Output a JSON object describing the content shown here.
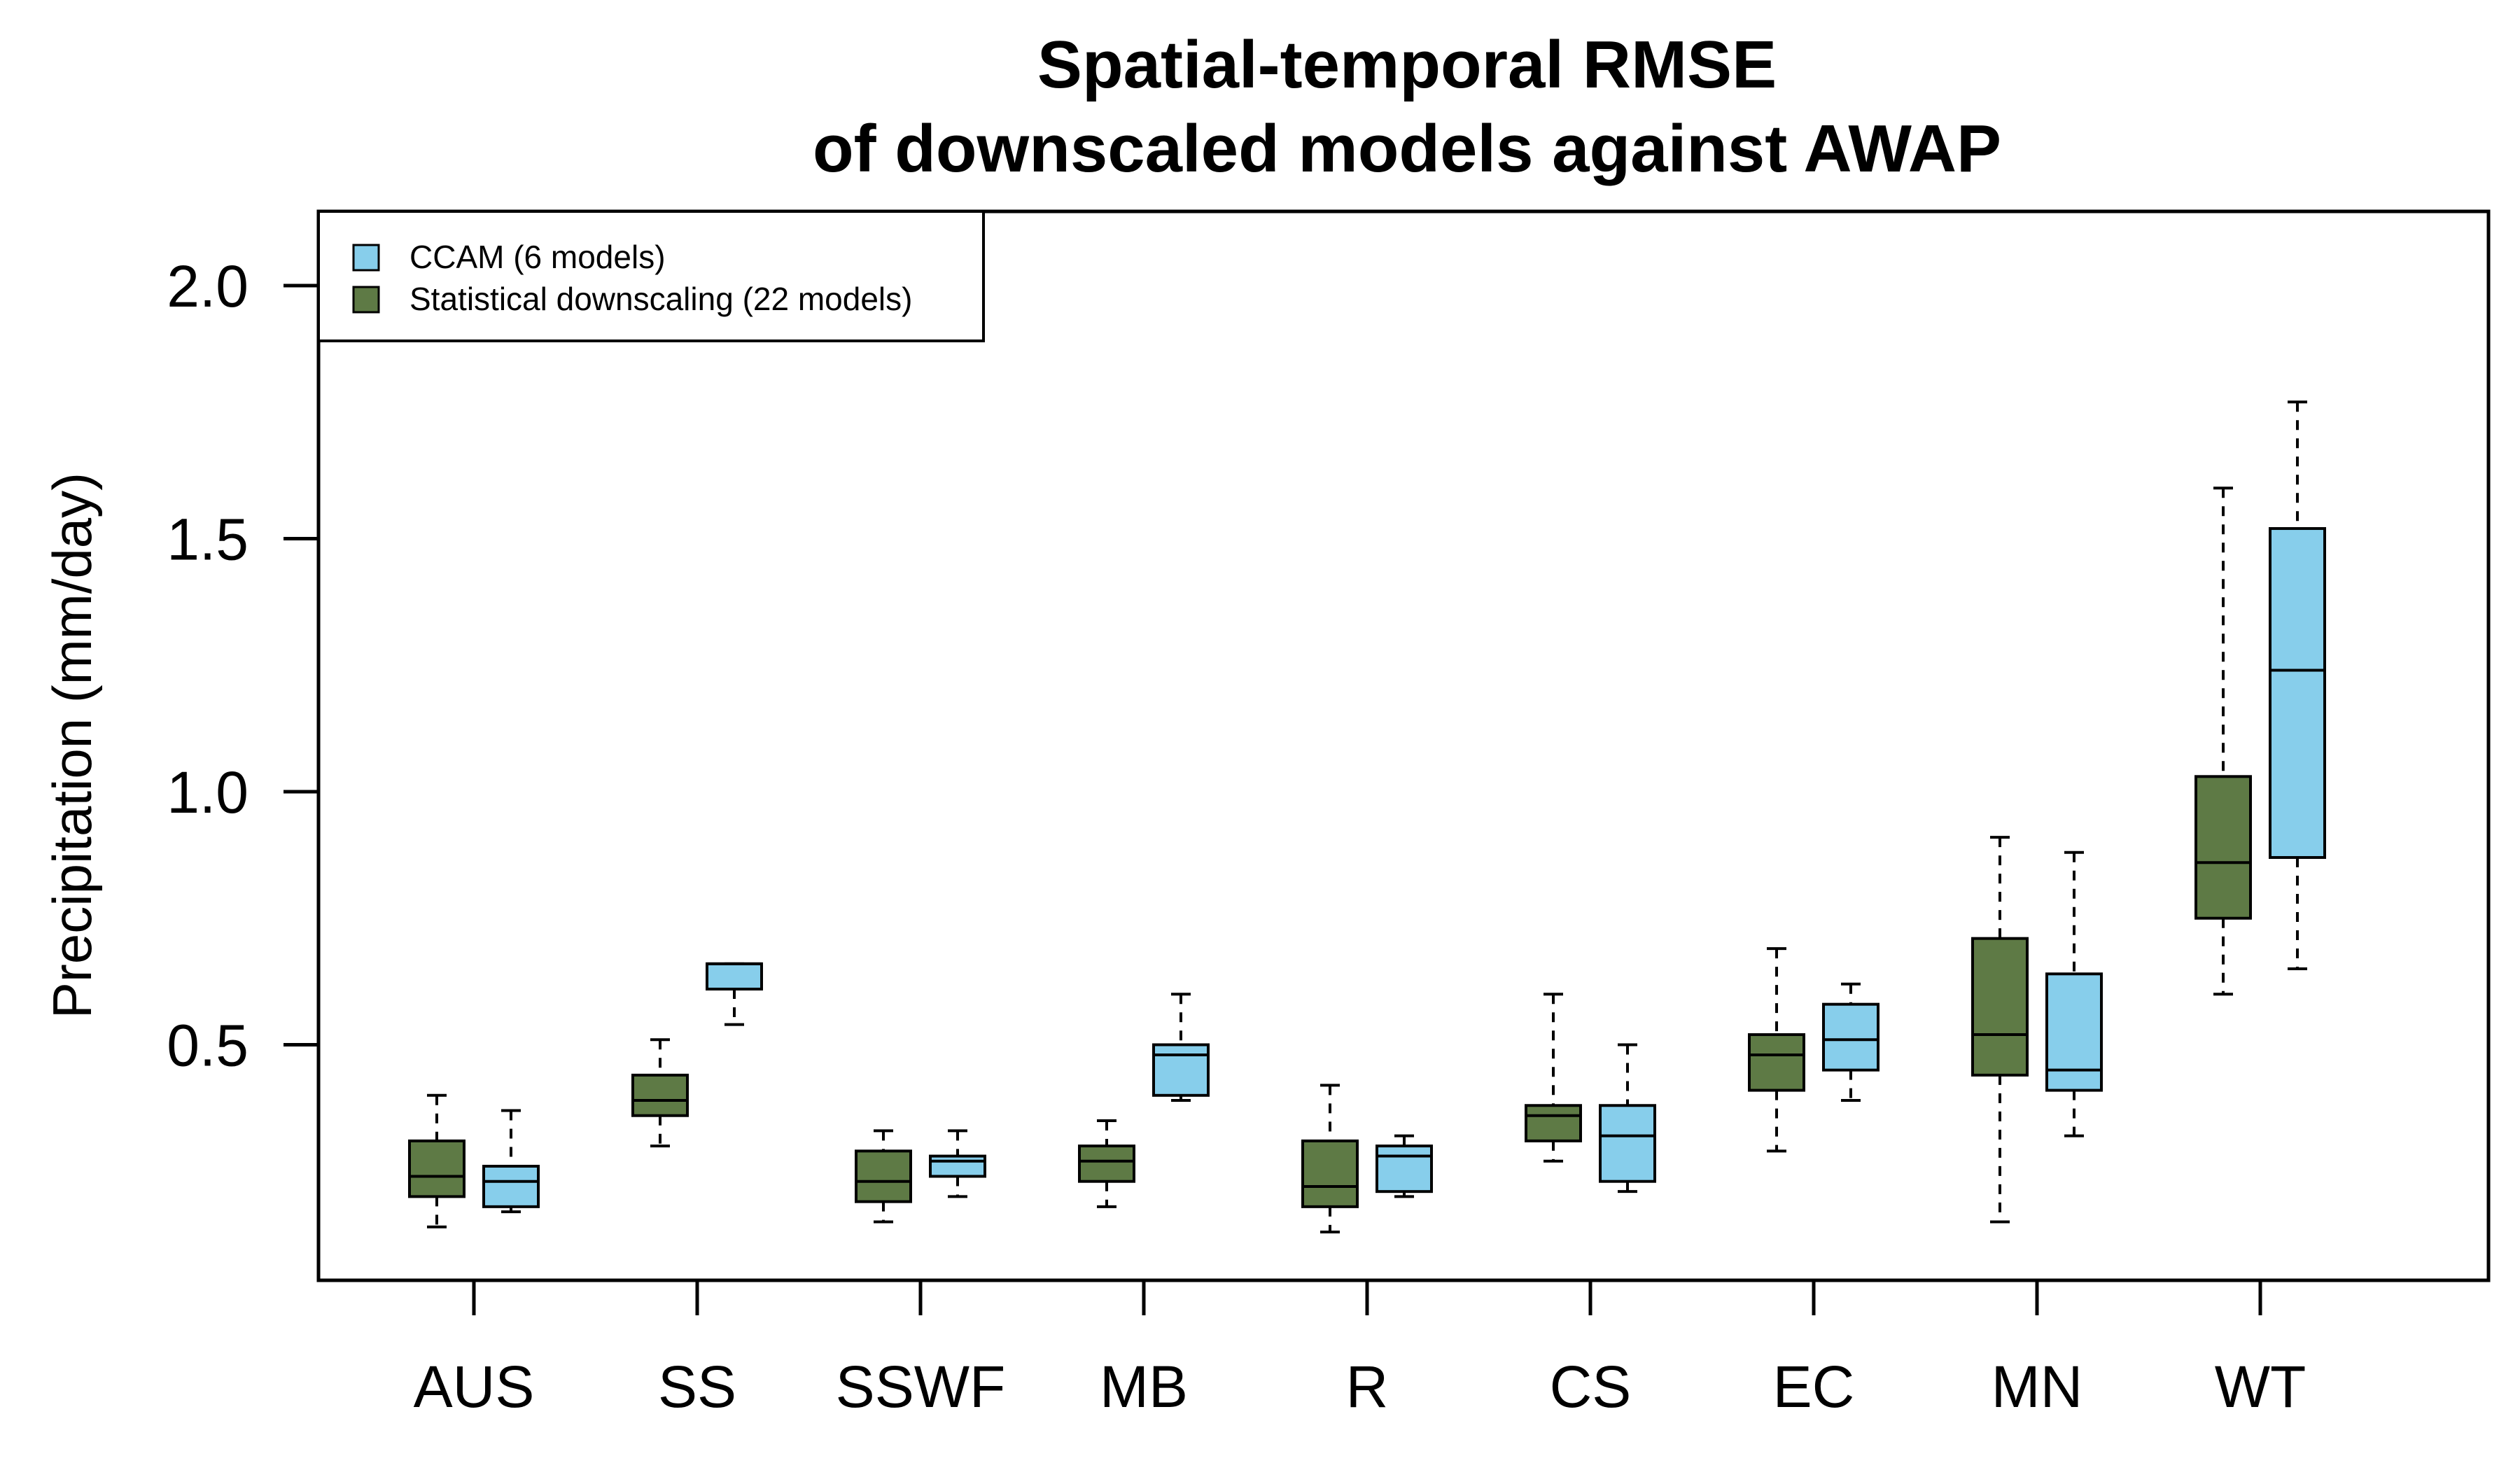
{
  "chart_data": {
    "type": "boxplot",
    "title": [
      "Spatial-temporal RMSE",
      "of downscaled models against AWAP"
    ],
    "xlabel": "",
    "ylabel": "Precipitation (mm/day)",
    "ylim": [
      0.0,
      2.15
    ],
    "yticks": [
      0.5,
      1.0,
      1.5,
      2.0
    ],
    "ytick_labels": [
      "0.5",
      "1.0",
      "1.5",
      "2.0"
    ],
    "grid": false,
    "legend_position": "top-left",
    "categories": [
      "AUS",
      "SS",
      "SSWF",
      "MB",
      "R",
      "CS",
      "EC",
      "MN",
      "WT"
    ],
    "series": [
      {
        "name": "Statistical downscaling (22 models)",
        "color": "#5e7a45",
        "boxes": [
          {
            "min": 0.14,
            "q1": 0.2,
            "median": 0.24,
            "q3": 0.31,
            "max": 0.4
          },
          {
            "min": 0.3,
            "q1": 0.36,
            "median": 0.39,
            "q3": 0.44,
            "max": 0.51
          },
          {
            "min": 0.15,
            "q1": 0.19,
            "median": 0.23,
            "q3": 0.29,
            "max": 0.33
          },
          {
            "min": 0.18,
            "q1": 0.23,
            "median": 0.27,
            "q3": 0.3,
            "max": 0.35
          },
          {
            "min": 0.13,
            "q1": 0.18,
            "median": 0.22,
            "q3": 0.31,
            "max": 0.42
          },
          {
            "min": 0.27,
            "q1": 0.31,
            "median": 0.36,
            "q3": 0.38,
            "max": 0.6
          },
          {
            "min": 0.29,
            "q1": 0.41,
            "median": 0.48,
            "q3": 0.52,
            "max": 0.69
          },
          {
            "min": 0.15,
            "q1": 0.44,
            "median": 0.52,
            "q3": 0.71,
            "max": 0.91
          },
          {
            "min": 0.6,
            "q1": 0.75,
            "median": 0.86,
            "q3": 1.03,
            "max": 1.6
          }
        ]
      },
      {
        "name": "CCAM (6 models)",
        "color": "#87ceeb",
        "boxes": [
          {
            "min": 0.17,
            "q1": 0.18,
            "median": 0.23,
            "q3": 0.26,
            "max": 0.37
          },
          {
            "min": 0.54,
            "q1": 0.61,
            "median": 0.66,
            "q3": 0.66,
            "max": 0.66
          },
          {
            "min": 0.2,
            "q1": 0.24,
            "median": 0.27,
            "q3": 0.28,
            "max": 0.33
          },
          {
            "min": 0.39,
            "q1": 0.4,
            "median": 0.48,
            "q3": 0.5,
            "max": 0.6
          },
          {
            "min": 0.2,
            "q1": 0.21,
            "median": 0.28,
            "q3": 0.3,
            "max": 0.32
          },
          {
            "min": 0.21,
            "q1": 0.23,
            "median": 0.32,
            "q3": 0.38,
            "max": 0.5
          },
          {
            "min": 0.39,
            "q1": 0.45,
            "median": 0.51,
            "q3": 0.58,
            "max": 0.62
          },
          {
            "min": 0.32,
            "q1": 0.41,
            "median": 0.45,
            "q3": 0.64,
            "max": 0.88
          },
          {
            "min": 0.65,
            "q1": 0.87,
            "median": 1.24,
            "q3": 1.52,
            "max": 1.77
          }
        ]
      }
    ],
    "legend": [
      {
        "label": "CCAM (6 models)",
        "color": "#87ceeb"
      },
      {
        "label": "Statistical downscaling (22 models)",
        "color": "#5e7a45"
      }
    ]
  }
}
